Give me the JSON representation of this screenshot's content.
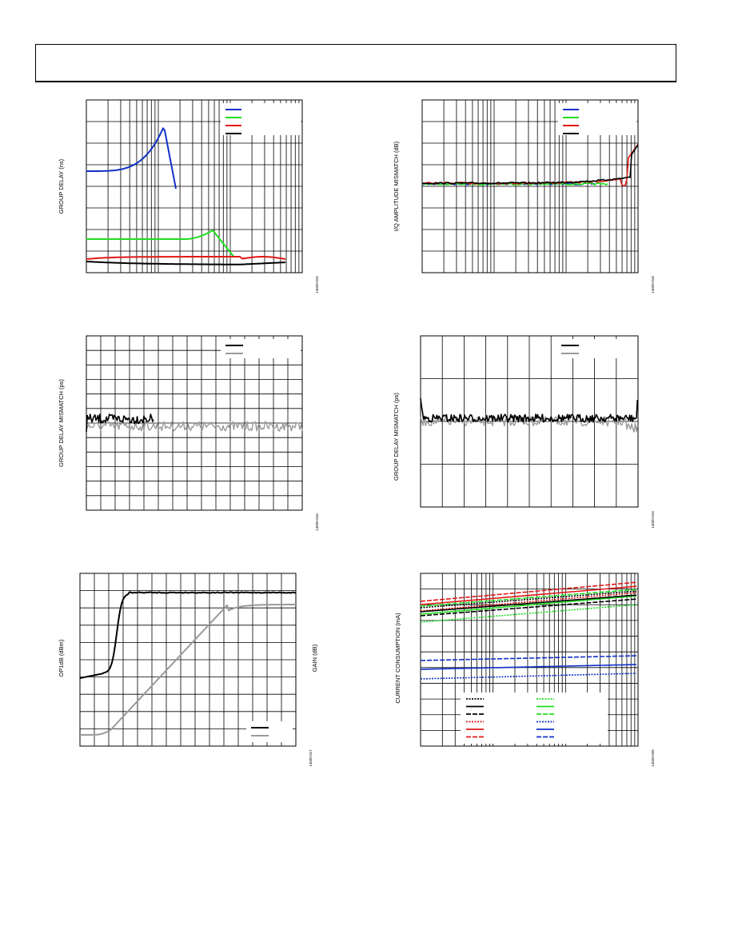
{
  "charts": [
    {
      "id": "c1",
      "type": "line",
      "ylabel": "GROUP DELAY (ns)",
      "fig_id": "14020-015",
      "xlog": true,
      "series": [
        {
          "color": "#1030c8",
          "dash": ""
        },
        {
          "color": "#20dd20",
          "dash": ""
        },
        {
          "color": "#e01818",
          "dash": ""
        },
        {
          "color": "#000000",
          "dash": ""
        }
      ]
    },
    {
      "id": "c2",
      "type": "line",
      "ylabel": "I/Q AMPLITUDE MISMATCH (dB)",
      "fig_id": "14020-018",
      "xlog": true,
      "series": [
        {
          "color": "#1030c8",
          "dash": ""
        },
        {
          "color": "#20dd20",
          "dash": ""
        },
        {
          "color": "#e01818",
          "dash": ""
        },
        {
          "color": "#000000",
          "dash": ""
        }
      ]
    },
    {
      "id": "c3",
      "type": "line",
      "ylabel": "GROUP DELAY MISMATCH (ps)",
      "fig_id": "14020-016",
      "xlog": false,
      "series": [
        {
          "color": "#000000",
          "dash": ""
        },
        {
          "color": "#9a9a9a",
          "dash": ""
        }
      ]
    },
    {
      "id": "c4",
      "type": "line",
      "ylabel": "GROUP DELAY MISMATCH (ps)",
      "fig_id": "14020-019",
      "xlog": false,
      "series": [
        {
          "color": "#000000",
          "dash": ""
        },
        {
          "color": "#9a9a9a",
          "dash": ""
        }
      ]
    },
    {
      "id": "c5",
      "type": "line",
      "ylabel": "OP1dB (dBm)",
      "ylabel_right": "GAIN (dB)",
      "fig_id": "14020-017",
      "xlog": false,
      "series": [
        {
          "color": "#000000",
          "dash": ""
        },
        {
          "color": "#9a9a9a",
          "dash": ""
        }
      ]
    },
    {
      "id": "c6",
      "type": "line",
      "ylabel": "CURRENT CONSUMPTION (mA)",
      "fig_id": "14020-025",
      "xlog": true,
      "series": [
        {
          "color": "#000000",
          "dash": "2,1.5"
        },
        {
          "color": "#000000",
          "dash": ""
        },
        {
          "color": "#000000",
          "dash": "6,2"
        },
        {
          "color": "#e01818",
          "dash": "2,1.5"
        },
        {
          "color": "#e01818",
          "dash": ""
        },
        {
          "color": "#e01818",
          "dash": "6,2"
        },
        {
          "color": "#20dd20",
          "dash": "2,1.5"
        },
        {
          "color": "#20dd20",
          "dash": ""
        },
        {
          "color": "#20dd20",
          "dash": "6,2"
        },
        {
          "color": "#1030c8",
          "dash": "2,1.5"
        },
        {
          "color": "#1030c8",
          "dash": ""
        },
        {
          "color": "#1030c8",
          "dash": "6,2"
        }
      ]
    }
  ]
}
